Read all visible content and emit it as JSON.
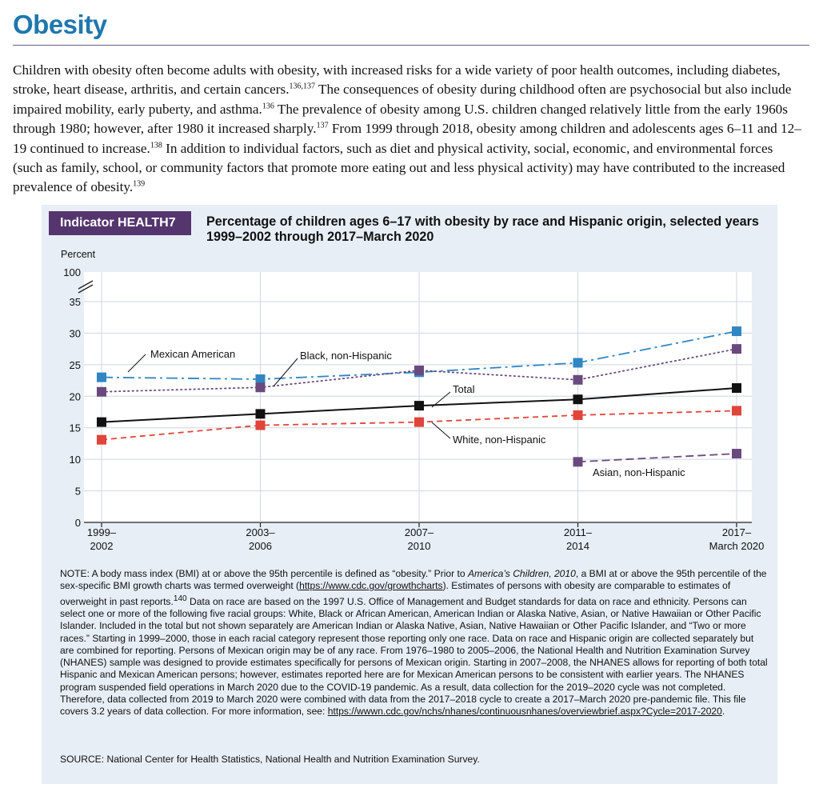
{
  "page": {
    "heading": "Obesity",
    "intro": [
      {
        "t": "Children with obesity often become adults with obesity, with increased risks for a wide variety of poor health outcomes, including diabetes, stroke, heart disease, arthritis, and certain cancers."
      },
      {
        "sup": "136,137"
      },
      {
        "t": " The consequences of obesity during childhood often are psychosocial but also include impaired mobility, early puberty, and asthma."
      },
      {
        "sup": "136"
      },
      {
        "t": " The prevalence of obesity among U.S. children changed relatively little from the early 1960s through 1980; however, after 1980 it increased sharply."
      },
      {
        "sup": "137"
      },
      {
        "t": " From 1999 through 2018, obesity among children and adolescents ages 6–11 and 12–19 continued to increase."
      },
      {
        "sup": "138"
      },
      {
        "t": " In addition to individual factors, such as diet and physical activity, social, economic, and environmental forces (such as family, school, or community factors that promote more eating out and less physical activity) may have contributed to the increased prevalence of obesity."
      },
      {
        "sup": "139"
      }
    ]
  },
  "figure": {
    "indicator": "Indicator HEALTH7",
    "title": "Percentage of children ages 6–17 with obesity by race and Hispanic origin, selected years 1999–2002 through 2017–March 2020",
    "note": [
      {
        "t": "NOTE: A body mass index (BMI) at or above the 95th percentile is defined as “obesity.” Prior to "
      },
      {
        "i": "America’s Children, 2010"
      },
      {
        "t": ", a BMI at or above the 95th percentile of the sex-specific BMI growth charts was termed overweight ("
      },
      {
        "u": "https://www.cdc.gov/growthcharts"
      },
      {
        "t": "). Estimates of persons with obesity are comparable to estimates of overweight in past reports."
      },
      {
        "sup": "140"
      },
      {
        "t": " Data on race are based on the 1997 U.S. Office of Management and Budget standards for data on race and ethnicity. Persons can select one or more of the following five racial groups: White, Black or African American, American Indian or Alaska Native, Asian, or Native Hawaiian or Other Pacific Islander. Included in the total but not shown separately are American Indian or Alaska Native, Asian, Native Hawaiian or Other Pacific Islander, and “Two or more races.” Starting in 1999–2000, those in each racial category represent those reporting only one race. Data on race and Hispanic origin are collected separately but are combined for reporting. Persons of Mexican origin may be of any race. From 1976–1980 to 2005–2006, the National Health and Nutrition Examination Survey (NHANES) sample was designed to provide estimates specifically for persons of Mexican origin. Starting in 2007–2008, the NHANES allows for reporting of both total Hispanic and Mexican American persons; however, estimates reported here are for Mexican American persons to be consistent with earlier years. The NHANES program suspended field operations in March 2020 due to the COVID-19 pandemic. As a result, data collection for the 2019–2020 cycle was not completed. Therefore, data collected from 2019 to March 2020 were combined with data from the 2017–2018 cycle to create a 2017–March 2020 pre-pandemic file. This file covers 3.2 years of data collection. For more information, see: "
      },
      {
        "u": "https://wwwn.cdc.gov/nchs/nhanes/continuousnhanes/overviewbrief.aspx?Cycle=2017-2020"
      },
      {
        "t": "."
      }
    ],
    "source": "SOURCE: National Center for Health Statistics, National Health and Nutrition Examination Survey."
  },
  "chart_data": {
    "type": "line",
    "ylabel": "Percent",
    "ylim": [
      0,
      35
    ],
    "ytick_values": [
      0,
      5,
      10,
      15,
      20,
      25,
      30,
      35
    ],
    "y_top_label": "100",
    "y_axis_break": true,
    "grid": "horizontal",
    "categories": [
      [
        "1999–",
        "2002"
      ],
      [
        "2003–",
        "2006"
      ],
      [
        "2007–",
        "2010"
      ],
      [
        "2011–",
        "2014"
      ],
      [
        "2017–",
        "March 2020"
      ]
    ],
    "series": [
      {
        "name": "Total",
        "color": "#111111",
        "dash": "solid",
        "values": [
          15.9,
          17.2,
          18.5,
          19.5,
          21.3
        ]
      },
      {
        "name": "White, non-Hispanic",
        "color": "#e0443a",
        "dash": "dashed",
        "values": [
          13.1,
          15.4,
          15.9,
          17.0,
          17.7
        ]
      },
      {
        "name": "Black, non-Hispanic",
        "color": "#6a4a7e",
        "dash": "dotted",
        "values": [
          20.7,
          21.4,
          24.1,
          22.6,
          27.5
        ]
      },
      {
        "name": "Mexican American",
        "color": "#2f86c3",
        "dash": "dashdot",
        "values": [
          23.0,
          22.7,
          23.8,
          25.3,
          30.3
        ]
      },
      {
        "name": "Asian, non-Hispanic",
        "color": "#6a4a7e",
        "dash": "longdash",
        "values": [
          null,
          null,
          null,
          9.6,
          10.9
        ]
      }
    ]
  }
}
